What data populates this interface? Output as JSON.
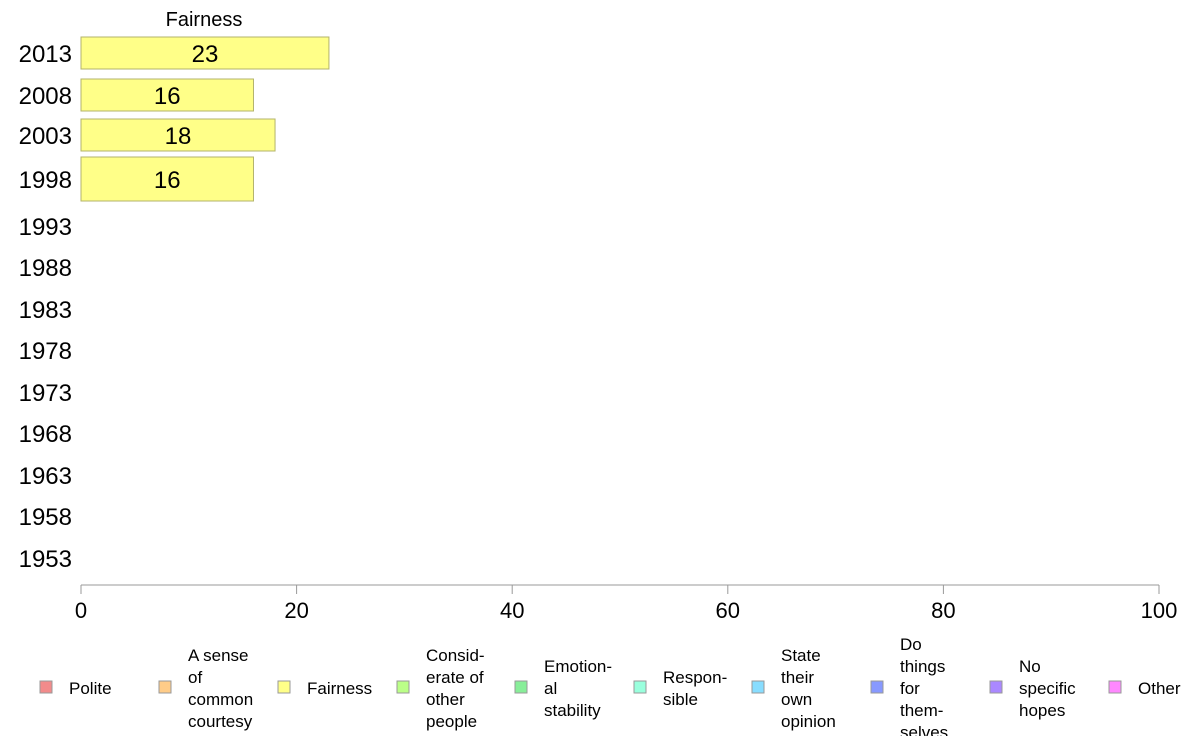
{
  "chart_data": {
    "type": "bar",
    "orientation": "horizontal",
    "title": "Fairness",
    "categories": [
      "2013",
      "2008",
      "2003",
      "1998",
      "1993",
      "1988",
      "1983",
      "1978",
      "1973",
      "1968",
      "1963",
      "1958",
      "1953"
    ],
    "series": [
      {
        "name": "Fairness",
        "values": [
          23,
          16,
          18,
          16,
          null,
          null,
          null,
          null,
          null,
          null,
          null,
          null,
          null
        ]
      }
    ],
    "bar_labels": [
      "23",
      "16",
      "18",
      "16"
    ],
    "xlim": [
      0,
      100
    ],
    "xticks": [
      0,
      20,
      40,
      60,
      80,
      100
    ],
    "grid": false,
    "legend_position": "bottom",
    "legend": [
      {
        "label": "Polite",
        "color": "#f28b8b"
      },
      {
        "label": "A sense of common courtesy",
        "color": "#ffcc88"
      },
      {
        "label": "Fairness",
        "color": "#ffff88"
      },
      {
        "label": "Consid-erate of other people",
        "color": "#bbff88"
      },
      {
        "label": "Emotion-al stability",
        "color": "#88ee99"
      },
      {
        "label": "Respon-sible",
        "color": "#99ffdd"
      },
      {
        "label": "State their own opinion",
        "color": "#88ddff"
      },
      {
        "label": "Do things for them-selves",
        "color": "#8899ff"
      },
      {
        "label": "No specific hopes",
        "color": "#aa88ff"
      },
      {
        "label": "Other",
        "color": "#ff88ff"
      }
    ],
    "legend_lines": [
      [
        "Polite"
      ],
      [
        "A sense",
        "of",
        "common",
        "courtesy"
      ],
      [
        "Fairness"
      ],
      [
        "Consid-",
        "erate of",
        "other",
        "people"
      ],
      [
        "Emotion-",
        "al",
        "stability"
      ],
      [
        "Respon-",
        "sible"
      ],
      [
        "State",
        "their",
        "own",
        "opinion"
      ],
      [
        "Do",
        "things",
        "for",
        "them-",
        "selves"
      ],
      [
        "No",
        "specific",
        "hopes"
      ],
      [
        "Other"
      ]
    ],
    "bar_color": "#ffff88",
    "bar_stroke": "#b3b36b"
  }
}
